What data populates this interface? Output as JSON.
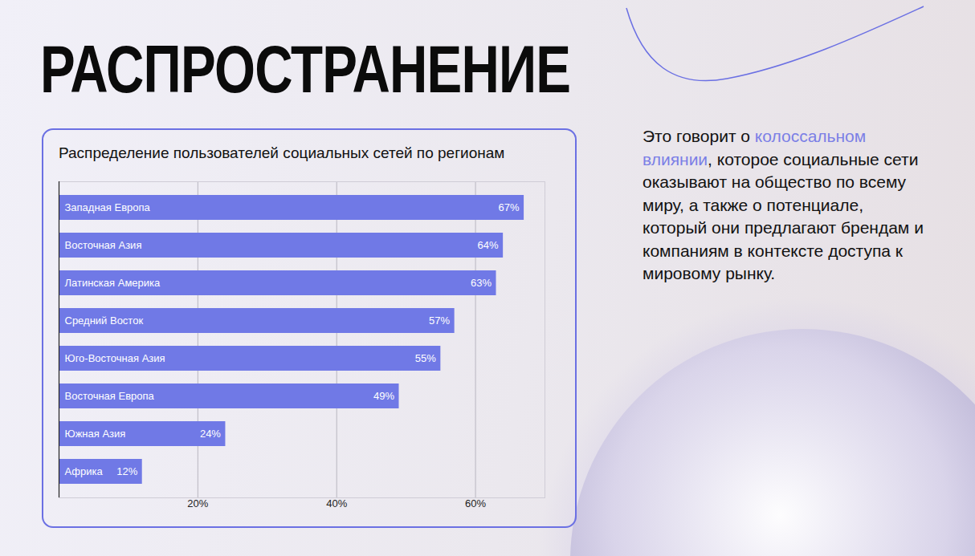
{
  "slide_title": "РАСПРОСТРАНЕНИЕ",
  "body_text": [
    {
      "text": "Это говорит о "
    },
    {
      "text": "колоссальном влиянии",
      "color": "#7b7fe6"
    },
    {
      "text": ", которое социальные сети оказывают на общество по всему миру, а также о потенциале, который они предлагают брендам и компаниям в контексте доступа к мировому рынку."
    }
  ],
  "chart_data": {
    "type": "bar",
    "orientation": "horizontal",
    "title": "Распределение пользователей социальных сетей по регионам",
    "categories": [
      "Западная Европа",
      "Восточная Азия",
      "Латинская Америка",
      "Средний Восток",
      "Юго-Восточная Азия",
      "Восточная Европа",
      "Южная Азия",
      "Африка"
    ],
    "values": [
      67,
      64,
      63,
      57,
      55,
      49,
      24,
      12
    ],
    "value_labels": [
      "67%",
      "64%",
      "63%",
      "57%",
      "55%",
      "49%",
      "24%",
      "12%"
    ],
    "color": "#7079e6",
    "xlim": [
      0,
      70
    ],
    "xticks": [
      {
        "value": 20,
        "label": "20%"
      },
      {
        "value": 40,
        "label": "40%"
      },
      {
        "value": 60,
        "label": "60%"
      }
    ],
    "grid": true,
    "data_labels": true
  }
}
